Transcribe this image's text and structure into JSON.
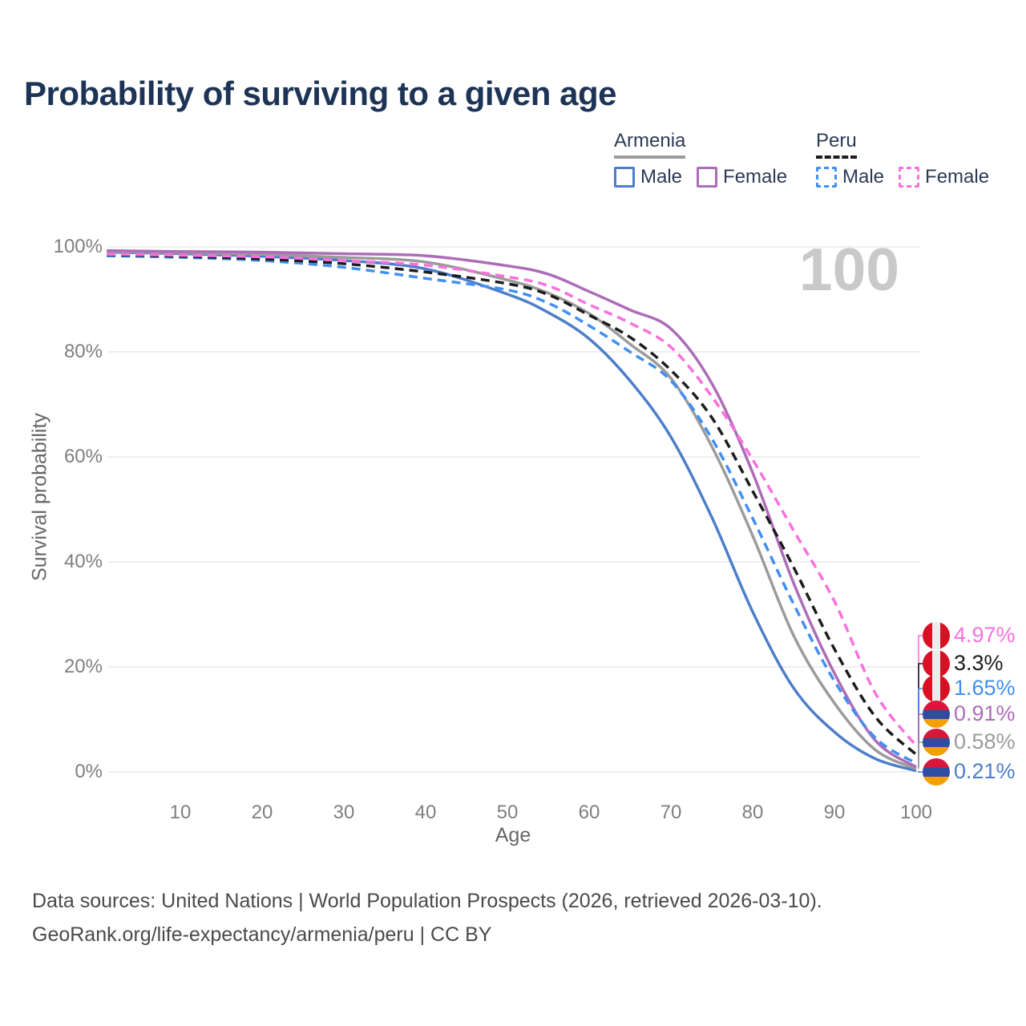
{
  "title": "Probability of surviving to a given age",
  "watermark": "100",
  "legend": {
    "groups": [
      {
        "label": "Armenia",
        "line_style": "solid",
        "underline_color": "#9b9b9b",
        "items": [
          {
            "label": "Male",
            "color": "#4d7fc9",
            "dashed": false
          },
          {
            "label": "Female",
            "color": "#ad6cb8",
            "dashed": false
          }
        ]
      },
      {
        "label": "Peru",
        "line_style": "dashed",
        "underline_color": "#1c1c1c",
        "items": [
          {
            "label": "Male",
            "color": "#418ff2",
            "dashed": true
          },
          {
            "label": "Female",
            "color": "#fa70dd",
            "dashed": true
          }
        ]
      }
    ]
  },
  "axes": {
    "y_title": "Survival probability",
    "x_title": "Age",
    "y_ticks": [
      {
        "value": 0,
        "label": "0%"
      },
      {
        "value": 20,
        "label": "20%"
      },
      {
        "value": 40,
        "label": "40%"
      },
      {
        "value": 60,
        "label": "60%"
      },
      {
        "value": 80,
        "label": "80%"
      },
      {
        "value": 100,
        "label": "100%"
      }
    ],
    "x_ticks": [
      {
        "value": 10,
        "label": "10"
      },
      {
        "value": 20,
        "label": "20"
      },
      {
        "value": 30,
        "label": "30"
      },
      {
        "value": 40,
        "label": "40"
      },
      {
        "value": 50,
        "label": "50"
      },
      {
        "value": 60,
        "label": "60"
      },
      {
        "value": 70,
        "label": "70"
      },
      {
        "value": 80,
        "label": "80"
      },
      {
        "value": 90,
        "label": "90"
      },
      {
        "value": 100,
        "label": "100"
      }
    ]
  },
  "chart_data": {
    "type": "line",
    "title": "Probability of surviving to a given age",
    "xlabel": "Age",
    "ylabel": "Survival probability",
    "xlim": [
      0,
      100
    ],
    "ylim_pct": [
      0,
      100
    ],
    "grid": "horizontal",
    "legend_position": "top-right",
    "x_ages": [
      1,
      10,
      20,
      30,
      40,
      50,
      55,
      60,
      65,
      70,
      75,
      80,
      85,
      90,
      95,
      100
    ],
    "series": [
      {
        "name": "Armenia Male",
        "country": "Armenia",
        "sex": "Male",
        "color": "#4d7fc9",
        "dashed": false,
        "end_label": "0.21%",
        "values_pct": [
          99.0,
          98.7,
          98.2,
          97.4,
          95.8,
          91.0,
          87.5,
          82.5,
          74.5,
          63.8,
          48.5,
          30.5,
          16.0,
          7.6,
          2.5,
          0.21
        ]
      },
      {
        "name": "Armenia Total",
        "country": "Armenia",
        "sex": "Both",
        "color": "#9b9b9b",
        "dashed": false,
        "end_label": "0.58%",
        "values_pct": [
          99.1,
          98.9,
          98.6,
          98.0,
          97.1,
          93.7,
          91.2,
          87.3,
          81.5,
          75.0,
          62.0,
          45.0,
          26.0,
          13.1,
          4.2,
          0.58
        ]
      },
      {
        "name": "Armenia Female",
        "country": "Armenia",
        "sex": "Female",
        "color": "#ad6cb8",
        "dashed": false,
        "end_label": "0.91%",
        "values_pct": [
          99.3,
          99.1,
          99.0,
          98.7,
          98.3,
          96.4,
          94.8,
          91.5,
          88.0,
          84.4,
          74.0,
          57.0,
          36.0,
          18.8,
          6.0,
          0.91
        ]
      },
      {
        "name": "Peru Male",
        "country": "Peru",
        "sex": "Male",
        "color": "#418ff2",
        "dashed": true,
        "end_label": "1.65%",
        "values_pct": [
          98.3,
          98.0,
          97.4,
          96.1,
          94.0,
          91.8,
          89.3,
          85.0,
          80.0,
          74.5,
          63.5,
          48.3,
          32.0,
          17.3,
          6.5,
          1.65
        ]
      },
      {
        "name": "Peru Total",
        "country": "Peru",
        "sex": "Both",
        "color": "#1c1c1c",
        "dashed": true,
        "end_label": "3.3%",
        "values_pct": [
          98.5,
          98.2,
          97.7,
          96.8,
          95.2,
          93.0,
          90.9,
          87.0,
          82.8,
          76.5,
          67.5,
          53.5,
          39.0,
          23.4,
          10.5,
          3.3
        ]
      },
      {
        "name": "Peru Female",
        "country": "Peru",
        "sex": "Female",
        "color": "#fa70dd",
        "dashed": true,
        "end_label": "4.97%",
        "values_pct": [
          98.6,
          98.4,
          98.1,
          97.4,
          96.5,
          94.3,
          92.6,
          89.0,
          85.5,
          80.9,
          71.5,
          59.5,
          46.0,
          32.5,
          15.0,
          4.97
        ]
      }
    ]
  },
  "end_labels": [
    {
      "value_label": "4.97%",
      "pct": 4.97,
      "text_color": "#fa70dd",
      "flag": "peru"
    },
    {
      "value_label": "3.3%",
      "pct": 3.3,
      "text_color": "#1c1c1c",
      "flag": "peru"
    },
    {
      "value_label": "1.65%",
      "pct": 1.65,
      "text_color": "#418ff2",
      "flag": "peru"
    },
    {
      "value_label": "0.91%",
      "pct": 0.91,
      "text_color": "#ad6cb8",
      "flag": "armenia"
    },
    {
      "value_label": "0.58%",
      "pct": 0.58,
      "text_color": "#9b9b9b",
      "flag": "armenia"
    },
    {
      "value_label": "0.21%",
      "pct": 0.21,
      "text_color": "#4d7fc9",
      "flag": "armenia"
    }
  ],
  "colors": {
    "title": "#1d3456",
    "gridline": "#e8e8e8",
    "tick_text": "#7f7f7f",
    "watermark": "#c9c9c9",
    "flag_peru": [
      "#d91023",
      "#ececec",
      "#d91023"
    ],
    "flag_armenia": [
      "#d7173c",
      "#2f4da0",
      "#f2a104"
    ]
  },
  "footer": {
    "line1": "Data sources: United Nations | World Population Prospects (2026, retrieved 2026-03-10).",
    "line2": "GeoRank.org/life-expectancy/armenia/peru | CC BY"
  }
}
